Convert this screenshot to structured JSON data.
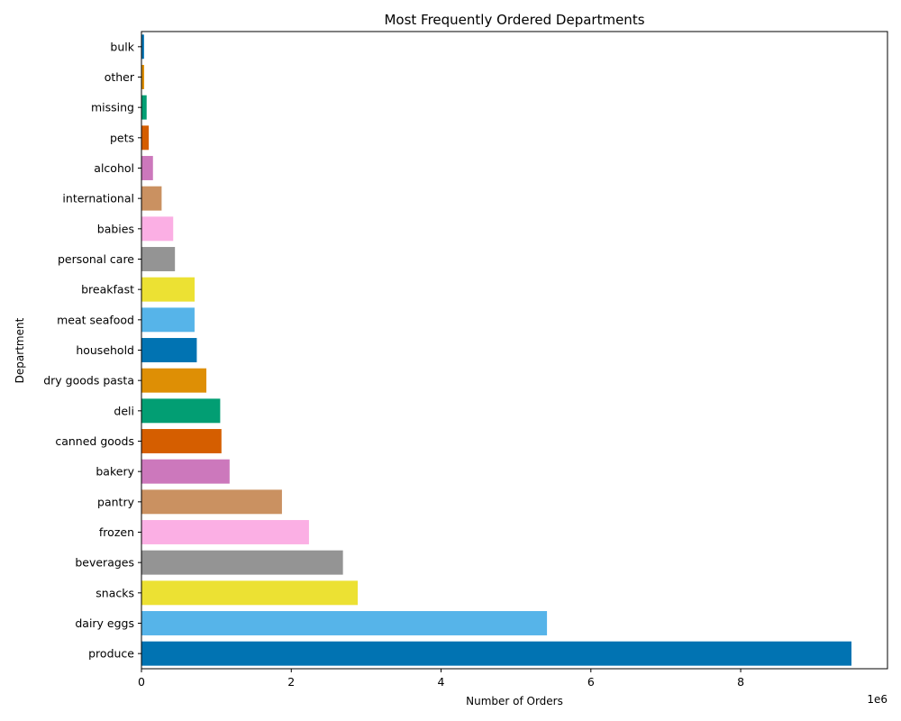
{
  "chart_data": {
    "type": "bar",
    "orientation": "horizontal",
    "title": "Most Frequently Ordered Departments",
    "xlabel": "Number of Orders",
    "ylabel": "Department",
    "x_scale_label": "1e6",
    "xlim": [
      0,
      9960000
    ],
    "xticks": [
      0,
      2000000,
      4000000,
      6000000,
      8000000
    ],
    "xtick_labels": [
      "0",
      "2",
      "4",
      "6",
      "8"
    ],
    "grid": false,
    "categories": [
      "bulk",
      "other",
      "missing",
      "pets",
      "alcohol",
      "international",
      "babies",
      "personal care",
      "breakfast",
      "meat seafood",
      "household",
      "dry goods pasta",
      "deli",
      "canned goods",
      "bakery",
      "pantry",
      "frozen",
      "beverages",
      "snacks",
      "dairy eggs",
      "produce"
    ],
    "values": [
      34570,
      36290,
      69140,
      97720,
      153700,
      269250,
      423800,
      447120,
      709570,
      708930,
      738670,
      866630,
      1051250,
      1068060,
      1176790,
      1875580,
      2236430,
      2690130,
      2887550,
      5414020,
      9479290
    ],
    "colors": [
      "#0173b2",
      "#de8f05",
      "#029e73",
      "#d55e00",
      "#cc78bc",
      "#ca9161",
      "#fbafe4",
      "#949494",
      "#ece133",
      "#56b4e9",
      "#0173b2",
      "#de8f05",
      "#029e73",
      "#d55e00",
      "#cc78bc",
      "#ca9161",
      "#fbafe4",
      "#949494",
      "#ece133",
      "#56b4e9",
      "#0173b2"
    ]
  }
}
